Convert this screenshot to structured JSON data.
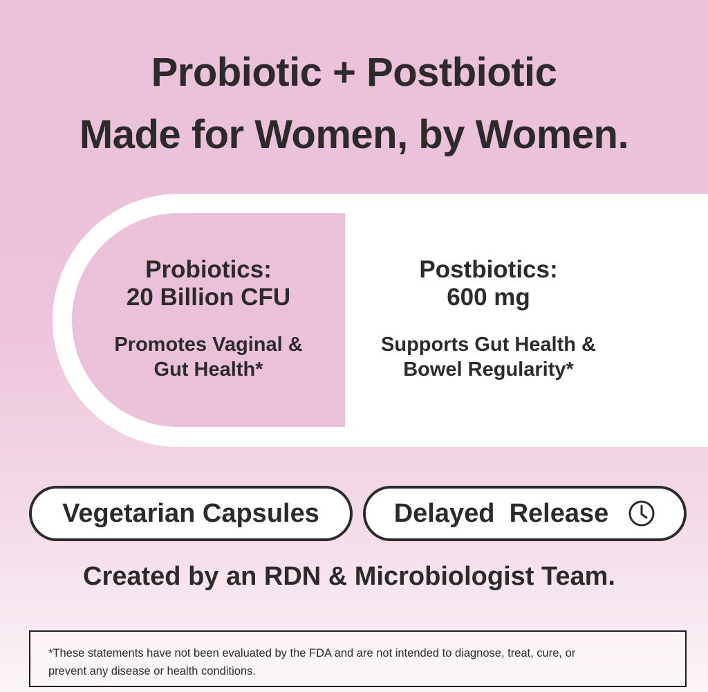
{
  "headline": {
    "line1": "Probiotic + Postbiotic",
    "line2": "Made for Women, by Women."
  },
  "capsule": {
    "probiotics": {
      "title": "Probiotics:",
      "value": "20 Billion CFU",
      "benefit_line1": "Promotes Vaginal &",
      "benefit_line2": "Gut Health*"
    },
    "postbiotics": {
      "title": "Postbiotics:",
      "value": "600 mg",
      "benefit_line1": "Supports Gut Health &",
      "benefit_line2": "Bowel Regularity*"
    }
  },
  "badges": {
    "vegetarian": "Vegetarian Capsules",
    "delayed": "Delayed  Release",
    "delayed_icon": "clock-icon"
  },
  "created_by": "Created by an RDN & Microbiologist Team.",
  "disclaimer": {
    "line1": "*These statements have not been evaluated by the FDA and are not intended to diagnose, treat, cure, or",
    "line2": "prevent any disease or health conditions."
  },
  "colors": {
    "pink": "#ebc1d9",
    "text": "#2c2a2b",
    "white": "#ffffff"
  }
}
